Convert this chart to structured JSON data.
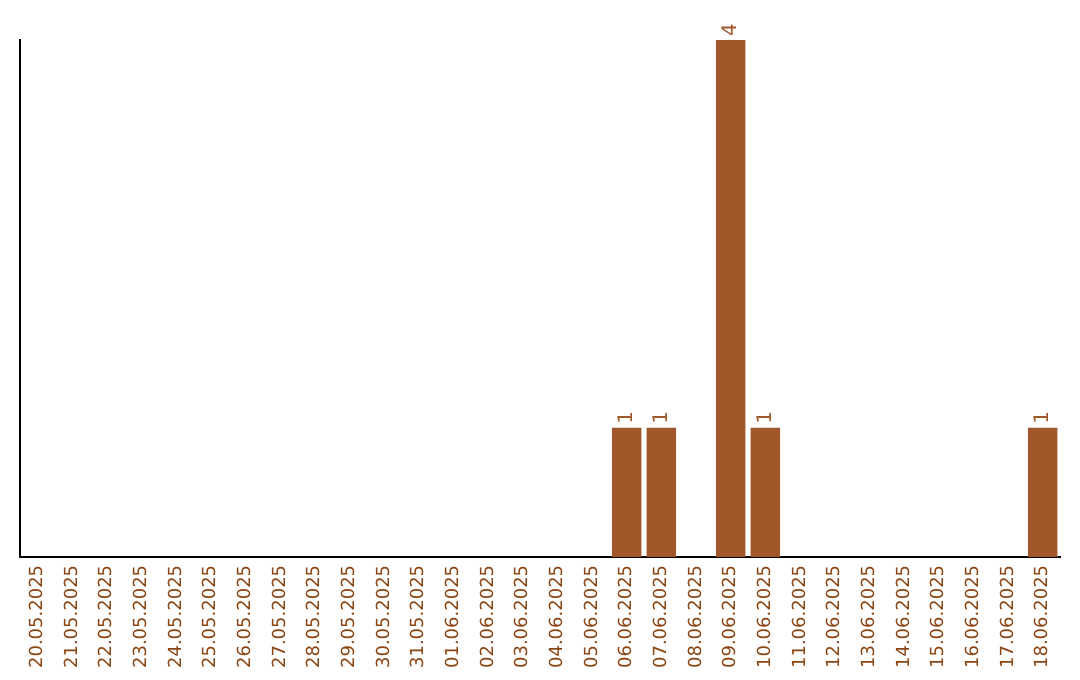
{
  "chart_data": {
    "type": "bar",
    "categories": [
      "20.05.2025",
      "21.05.2025",
      "22.05.2025",
      "23.05.2025",
      "24.05.2025",
      "25.05.2025",
      "26.05.2025",
      "27.05.2025",
      "28.05.2025",
      "29.05.2025",
      "30.05.2025",
      "31.05.2025",
      "01.06.2025",
      "02.06.2025",
      "03.06.2025",
      "04.06.2025",
      "05.06.2025",
      "06.06.2025",
      "07.06.2025",
      "08.06.2025",
      "09.06.2025",
      "10.06.2025",
      "11.06.2025",
      "12.06.2025",
      "13.06.2025",
      "14.06.2025",
      "15.06.2025",
      "16.06.2025",
      "17.06.2025",
      "18.06.2025"
    ],
    "values": [
      null,
      null,
      null,
      null,
      null,
      null,
      null,
      null,
      null,
      null,
      null,
      null,
      null,
      null,
      null,
      null,
      null,
      1,
      1,
      null,
      4,
      1,
      null,
      null,
      null,
      null,
      null,
      null,
      null,
      1
    ],
    "value_labels": [
      null,
      null,
      null,
      null,
      null,
      null,
      null,
      null,
      null,
      null,
      null,
      null,
      null,
      null,
      null,
      null,
      null,
      "1",
      "1",
      null,
      "4",
      "1",
      null,
      null,
      null,
      null,
      null,
      null,
      null,
      "1"
    ],
    "color": "#a0582a",
    "tick_labels": "x",
    "grid": false,
    "legend": false
  }
}
